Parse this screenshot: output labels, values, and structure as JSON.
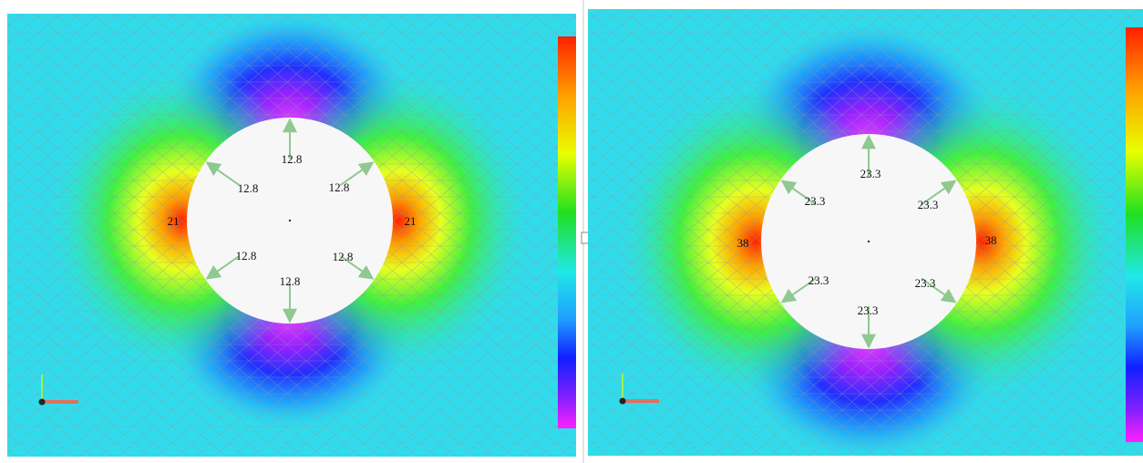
{
  "panels": [
    {
      "hole_labels": [
        "12.8",
        "12.8",
        "12.8",
        "12.8",
        "12.8",
        "12.8"
      ],
      "edge_labels": [
        "21",
        "21"
      ]
    },
    {
      "hole_labels": [
        "23.3",
        "23.3",
        "23.3",
        "23.3",
        "23.3",
        "23.3"
      ],
      "edge_labels": [
        "38",
        "38"
      ]
    }
  ]
}
